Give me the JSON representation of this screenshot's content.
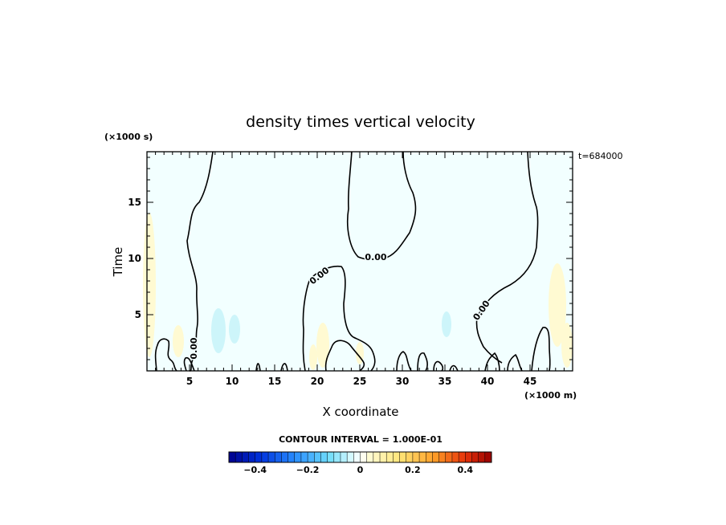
{
  "chart_data": {
    "type": "heatmap",
    "title": "density times vertical velocity",
    "xlabel": "X coordinate",
    "ylabel": "Time",
    "x_unit": "(×1000 m)",
    "y_unit": "(×1000 s)",
    "time_label": "t=684000",
    "xlim": [
      0,
      50
    ],
    "ylim": [
      0,
      19.5
    ],
    "x_ticks": [
      5,
      10,
      15,
      20,
      25,
      30,
      35,
      40,
      45
    ],
    "x_tick_labels": [
      "5",
      "10",
      "15",
      "20",
      "25",
      "30",
      "35",
      "40",
      "45"
    ],
    "y_ticks": [
      5,
      10,
      15
    ],
    "y_tick_labels": [
      "5",
      "10",
      "15"
    ],
    "contour_label": "0.00",
    "contour_interval_text": "CONTOUR INTERVAL = 1.000E-01",
    "colorbar": {
      "min": -0.5,
      "max": 0.5,
      "step": 0.025,
      "tick_values": [
        -0.4,
        -0.2,
        0,
        0.2,
        0.4
      ],
      "tick_labels": [
        "−0.4",
        "−0.2",
        "0",
        "0.2",
        "0.4"
      ]
    },
    "colors": {
      "field_background": "#f2ffff",
      "positive_patch": "#fffad2",
      "negative_patch": "#cdf5fa"
    }
  }
}
